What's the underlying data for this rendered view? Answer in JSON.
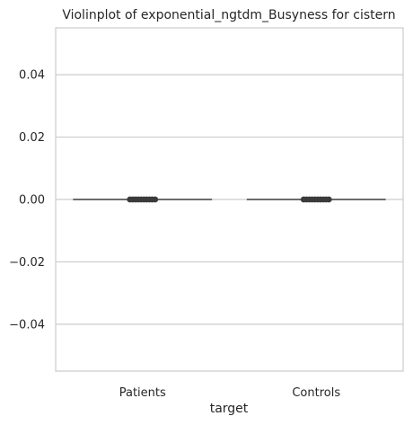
{
  "chart_data": {
    "type": "violin",
    "title": "Violinplot of exponential_ngtdm_Busyness for cistern",
    "xlabel": "target",
    "ylabel": "",
    "categories": [
      "Patients",
      "Controls"
    ],
    "yticks": [
      -0.04,
      -0.02,
      0.0,
      0.02,
      0.04
    ],
    "ytick_labels": [
      "−0.04",
      "−0.02",
      "0.00",
      "0.02",
      "0.04"
    ],
    "ylim": [
      -0.055,
      0.055
    ],
    "grid": true,
    "series": [
      {
        "category": "Patients",
        "values": [
          0,
          0,
          0,
          0,
          0,
          0,
          0,
          0,
          0,
          0
        ]
      },
      {
        "category": "Controls",
        "values": [
          0,
          0,
          0,
          0,
          0,
          0,
          0,
          0,
          0,
          0
        ]
      }
    ],
    "colors": {
      "grid": "#cccccc",
      "frame": "#cccccc",
      "violin_line": "#595959",
      "points": "#3b3b3b",
      "text": "#262626"
    }
  }
}
